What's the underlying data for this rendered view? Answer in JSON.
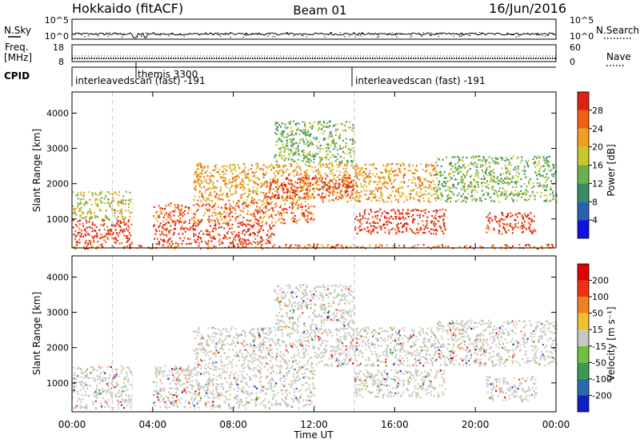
{
  "header": {
    "station": "Hokkaido (fitACF)",
    "beam": "Beam 01",
    "date": "16/Jun/2016"
  },
  "nsky_panel": {
    "left_label": "N.Sky",
    "ticks": [
      "10^5",
      "10^0"
    ],
    "right_label": "N.Search"
  },
  "freq_panel": {
    "left_label_1": "Freq.",
    "left_label_2": "[MHz]",
    "left_ticks": [
      "18",
      "8"
    ],
    "right_ticks": [
      "60",
      "0"
    ],
    "right_label": "Nave"
  },
  "cpid_panel": {
    "label": "CPID",
    "programs": [
      {
        "name": "interleavedscan (fast) -191",
        "start_hour": 0.0
      },
      {
        "name": "themis 3300",
        "start_hour": 3.2
      },
      {
        "name": "interleavedscan (fast) -191",
        "start_hour": 14.0
      }
    ]
  },
  "time_axis": {
    "label": "Time UT",
    "ticks": [
      "00:00",
      "04:00",
      "08:00",
      "12:00",
      "16:00",
      "20:00",
      "00:00"
    ]
  },
  "chart_data": [
    {
      "type": "heatmap",
      "name": "power",
      "ylabel": "Slant Range [km]",
      "yticks": [
        "1000",
        "2000",
        "3000",
        "4000"
      ],
      "xlim": [
        0,
        24
      ],
      "ylim": [
        180,
        4600
      ],
      "colorbar": {
        "label": "Power [dB]",
        "tick_labels": [
          "4",
          "8",
          "12",
          "16",
          "20",
          "24",
          "28"
        ],
        "colors": [
          "#1010e0",
          "#2a60b0",
          "#3a8a66",
          "#6ab04c",
          "#c8c82a",
          "#f0a020",
          "#f06010",
          "#e02010"
        ]
      },
      "scatter_regions": [
        {
          "hours": [
            0.0,
            3.0
          ],
          "range_km": [
            300,
            1000
          ],
          "level": 7
        },
        {
          "hours": [
            0.0,
            3.0
          ],
          "range_km": [
            1000,
            1800
          ],
          "level": 4
        },
        {
          "hours": [
            4.0,
            10.0
          ],
          "range_km": [
            300,
            900
          ],
          "level": 7
        },
        {
          "hours": [
            4.0,
            12.0
          ],
          "range_km": [
            900,
            1500
          ],
          "level": 6
        },
        {
          "hours": [
            6.0,
            14.0
          ],
          "range_km": [
            1500,
            2600
          ],
          "level": 5
        },
        {
          "hours": [
            9.5,
            14.0
          ],
          "range_km": [
            1600,
            2200
          ],
          "level": 7
        },
        {
          "hours": [
            10.0,
            14.0
          ],
          "range_km": [
            2600,
            3800
          ],
          "level": 3
        },
        {
          "hours": [
            14.0,
            18.5
          ],
          "range_km": [
            600,
            1300
          ],
          "level": 7
        },
        {
          "hours": [
            14.0,
            18.0
          ],
          "range_km": [
            1500,
            2600
          ],
          "level": 5
        },
        {
          "hours": [
            18.0,
            24.0
          ],
          "range_km": [
            1500,
            2800
          ],
          "level": 3
        },
        {
          "hours": [
            20.5,
            23.0
          ],
          "range_km": [
            600,
            1200
          ],
          "level": 7
        },
        {
          "hours": [
            0.0,
            24.0
          ],
          "range_km": [
            180,
            300
          ],
          "level": 6
        }
      ]
    },
    {
      "type": "heatmap",
      "name": "velocity",
      "ylabel": "Slant Range [km]",
      "yticks": [
        "1000",
        "2000",
        "3000",
        "4000"
      ],
      "xlim": [
        0,
        24
      ],
      "ylim": [
        180,
        4600
      ],
      "colorbar": {
        "label": "Velocity [m s⁻¹]",
        "tick_labels": [
          "200",
          "100",
          "50",
          "15",
          "-15",
          "-50",
          "-100",
          "-200"
        ],
        "colors": [
          "#1020c0",
          "#2a6aa8",
          "#3a9a50",
          "#72c040",
          "#c8c8c0",
          "#f0c030",
          "#f08020",
          "#f03010",
          "#e00000"
        ]
      },
      "scatter_regions": [
        {
          "hours": [
            0.0,
            3.0
          ],
          "range_km": [
            300,
            1500
          ],
          "level": 4
        },
        {
          "hours": [
            4.0,
            12.0
          ],
          "range_km": [
            300,
            1500
          ],
          "level": 4
        },
        {
          "hours": [
            6.0,
            14.0
          ],
          "range_km": [
            1500,
            2600
          ],
          "level": 4
        },
        {
          "hours": [
            10.0,
            14.0
          ],
          "range_km": [
            2600,
            3800
          ],
          "level": 4
        },
        {
          "hours": [
            14.0,
            18.5
          ],
          "range_km": [
            600,
            1400
          ],
          "level": 4
        },
        {
          "hours": [
            14.0,
            18.0
          ],
          "range_km": [
            1500,
            2600
          ],
          "level": 4
        },
        {
          "hours": [
            18.0,
            24.0
          ],
          "range_km": [
            1500,
            2800
          ],
          "level": 4
        },
        {
          "hours": [
            20.5,
            23.0
          ],
          "range_km": [
            500,
            1200
          ],
          "level": 4
        }
      ]
    }
  ],
  "data_gaps_hours": [
    [
      3.0,
      3.25
    ],
    [
      3.55,
      3.75
    ]
  ],
  "program_change_hours": [
    2.0,
    14.0
  ]
}
